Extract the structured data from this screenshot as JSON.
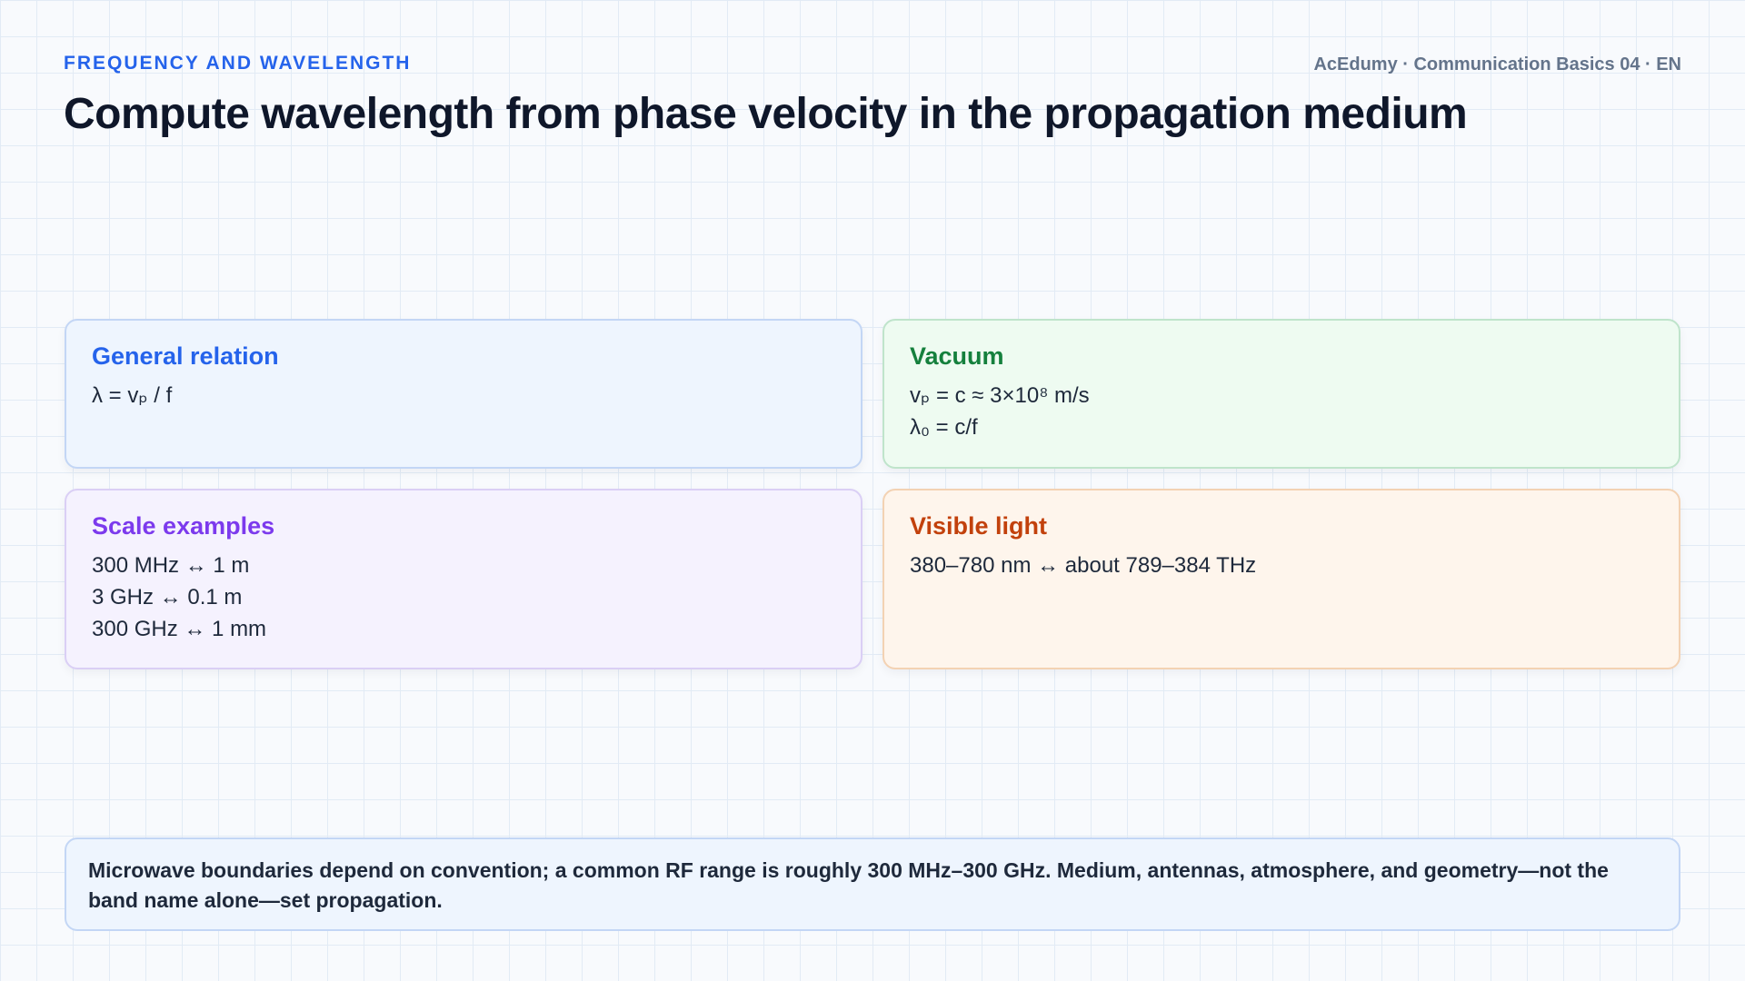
{
  "header": {
    "kicker": "FREQUENCY AND WAVELENGTH",
    "meta": "AcEdumy · Communication Basics 04 · EN",
    "title": "Compute wavelength from phase velocity in the propagation medium"
  },
  "cards": [
    {
      "title": "General relation",
      "lines": [
        "λ = vₚ / f"
      ]
    },
    {
      "title": "Vacuum",
      "lines": [
        "vₚ = c ≈ 3×10⁸ m/s",
        "λ₀ = c/f"
      ]
    },
    {
      "title": "Scale examples",
      "lines": [
        "300 MHz ↔ 1 m",
        "3 GHz ↔ 0.1 m",
        "300 GHz ↔ 1 mm"
      ]
    },
    {
      "title": "Visible light",
      "lines": [
        "380–780 nm ↔ about 789–384 THz"
      ]
    }
  ],
  "footer": {
    "text": "Microwave boundaries depend on convention; a common RF range is roughly 300 MHz–300 GHz. Medium, antennas, atmosphere, and geometry—not the band name alone—set propagation."
  }
}
